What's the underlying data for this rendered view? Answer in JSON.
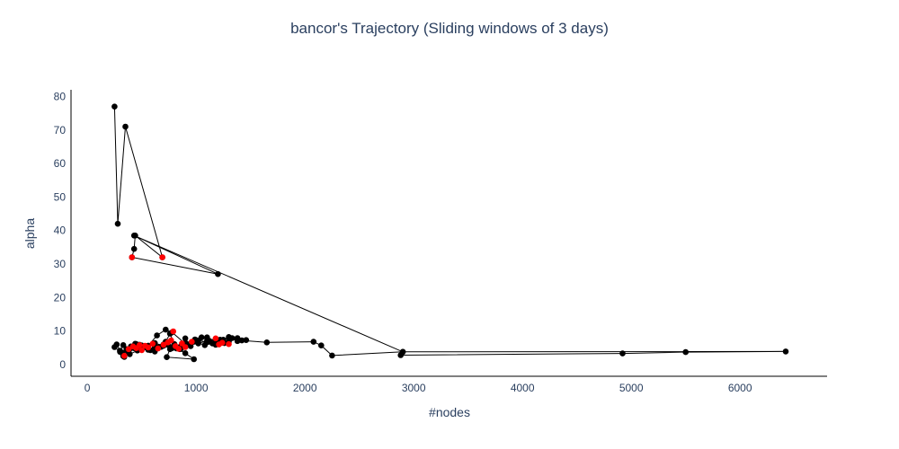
{
  "chart_data": {
    "type": "scatter",
    "title": "bancor's Trajectory (Sliding windows of 3 days)",
    "xlabel": "#nodes",
    "ylabel": "alpha",
    "xlim": [
      -150,
      6800
    ],
    "ylim": [
      -3.5,
      82
    ],
    "xticks": [
      0,
      1000,
      2000,
      3000,
      4000,
      5000,
      6000
    ],
    "yticks": [
      0,
      10,
      20,
      30,
      40,
      50,
      60,
      70,
      80
    ],
    "grid": false,
    "legend": "none",
    "series": [
      {
        "mode": "lines+markers",
        "color": "#000000",
        "x": [
          250,
          280,
          350,
          690,
          440,
          430,
          410,
          1200,
          430,
          2900,
          2880,
          4920,
          5500,
          6420,
          2900,
          2250,
          2150,
          2080,
          1650,
          1420,
          1330,
          1250,
          1180,
          1100,
          990,
          900,
          780,
          720,
          640,
          560,
          480,
          410,
          360,
          330,
          300,
          270,
          250,
          300,
          330,
          400,
          450,
          500,
          560,
          620,
          680,
          720,
          760,
          800,
          850,
          900,
          950,
          1000,
          1050,
          1120,
          1200,
          1300,
          1380,
          1460,
          1380,
          1300,
          1220,
          1150,
          1080,
          980,
          900,
          820,
          760,
          730,
          980,
          900,
          820,
          740,
          660,
          580,
          500,
          430,
          380,
          340,
          320,
          360,
          400,
          440,
          500,
          560,
          620,
          700,
          780,
          860,
          940,
          1020,
          1100,
          1180,
          1260,
          1180,
          1100,
          1020,
          940,
          860,
          780,
          700,
          620,
          540,
          460,
          390
        ],
        "y": [
          77,
          42,
          71,
          32,
          38.5,
          34.5,
          32,
          27,
          38.5,
          3.8,
          2.8,
          3.3,
          3.7,
          3.9,
          3.8,
          2.7,
          5.7,
          6.8,
          6.6,
          7.2,
          7.9,
          7.4,
          6.9,
          8.1,
          7.5,
          6.2,
          9.6,
          10.4,
          8.7,
          5.6,
          5.9,
          5.2,
          4.3,
          5.8,
          4.1,
          6.0,
          5.2,
          3.8,
          2.5,
          4.9,
          6.1,
          4.7,
          5.6,
          3.9,
          5.3,
          6.8,
          9.2,
          6.1,
          4.6,
          7.8,
          5.5,
          6.9,
          8.1,
          7.1,
          6.6,
          8.2,
          7.0,
          7.3,
          7.9,
          6.8,
          7.4,
          6.3,
          5.8,
          6.9,
          6.4,
          5.1,
          4.6,
          2.2,
          1.6,
          3.4,
          4.8,
          5.9,
          5.2,
          4.3,
          5.7,
          4.9,
          3.8,
          2.3,
          3.5,
          4.6,
          5.4,
          6.2,
          5.1,
          4.4,
          5.3,
          6.0,
          5.2,
          4.7,
          5.8,
          6.3,
          7.1,
          7.6,
          6.4,
          5.9,
          6.7,
          7.2,
          6.1,
          5.5,
          4.9,
          5.6,
          6.4,
          5.1,
          4.2,
          3.1
        ]
      },
      {
        "mode": "markers",
        "color": "#ff0000",
        "x": [
          410,
          690,
          340,
          380,
          420,
          450,
          480,
          500,
          530,
          560,
          600,
          650,
          700,
          740,
          770,
          790,
          810,
          840,
          870,
          900,
          960,
          1180,
          1210,
          1240,
          1300
        ],
        "y": [
          32,
          32,
          2.6,
          4.6,
          5.4,
          4.9,
          5.8,
          4.3,
          5.6,
          5.1,
          6.2,
          4.8,
          5.9,
          6.6,
          7.2,
          9.9,
          5.5,
          4.7,
          6.3,
          5.2,
          6.8,
          7.8,
          6.0,
          6.5,
          6.1
        ]
      }
    ]
  }
}
